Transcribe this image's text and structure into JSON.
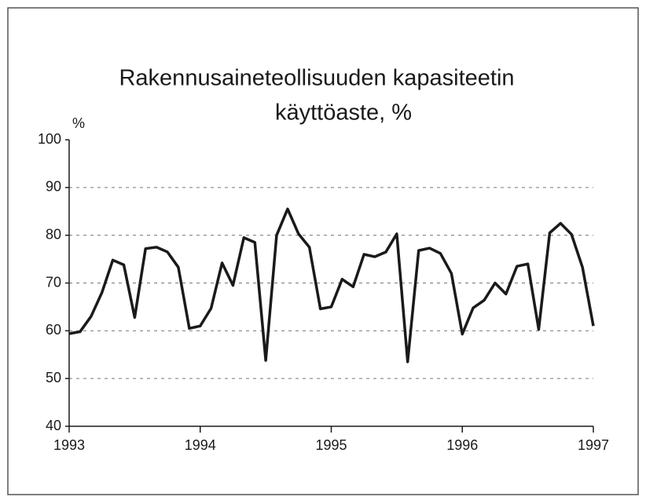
{
  "chart_data": {
    "type": "line",
    "title": [
      "Rakennusaineteollisuuden kapasiteetin",
      "käyttöaste, %"
    ],
    "y_label": "%",
    "x": [
      1993,
      1993.083,
      1993.167,
      1993.25,
      1993.333,
      1993.417,
      1993.5,
      1993.583,
      1993.667,
      1993.75,
      1993.833,
      1993.917,
      1994,
      1994.083,
      1994.167,
      1994.25,
      1994.333,
      1994.417,
      1994.5,
      1994.583,
      1994.667,
      1994.75,
      1994.833,
      1994.917,
      1995,
      1995.083,
      1995.167,
      1995.25,
      1995.333,
      1995.417,
      1995.5,
      1995.583,
      1995.667,
      1995.75,
      1995.833,
      1995.917,
      1996,
      1996.083,
      1996.167,
      1996.25,
      1996.333,
      1996.417,
      1996.5,
      1996.583,
      1996.667,
      1996.75,
      1996.833,
      1996.917,
      1997
    ],
    "series": [
      {
        "name": "Käyttöaste",
        "color": "#1a1a1a",
        "values": [
          59.4,
          59.8,
          63,
          68,
          74.8,
          73.8,
          62.8,
          77.2,
          77.5,
          76.5,
          73.3,
          60.5,
          61,
          64.7,
          74.2,
          69.5,
          79.5,
          78.5,
          53.8,
          80,
          85.5,
          80.3,
          77.5,
          64.6,
          65,
          70.8,
          69.2,
          76,
          75.5,
          76.5,
          80.3,
          53.5,
          76.8,
          77.3,
          76.2,
          72,
          59.3,
          64.8,
          66.4,
          70,
          67.7,
          73.5,
          74,
          60.3,
          80.5,
          82.5,
          80.2,
          73.3,
          61
        ]
      }
    ],
    "xlim": [
      1993,
      1997
    ],
    "xticks": [
      1993,
      1994,
      1995,
      1996,
      1997
    ],
    "ylim": [
      40,
      100
    ],
    "yticks": [
      40,
      50,
      60,
      70,
      80,
      90,
      100
    ],
    "grid": true
  }
}
